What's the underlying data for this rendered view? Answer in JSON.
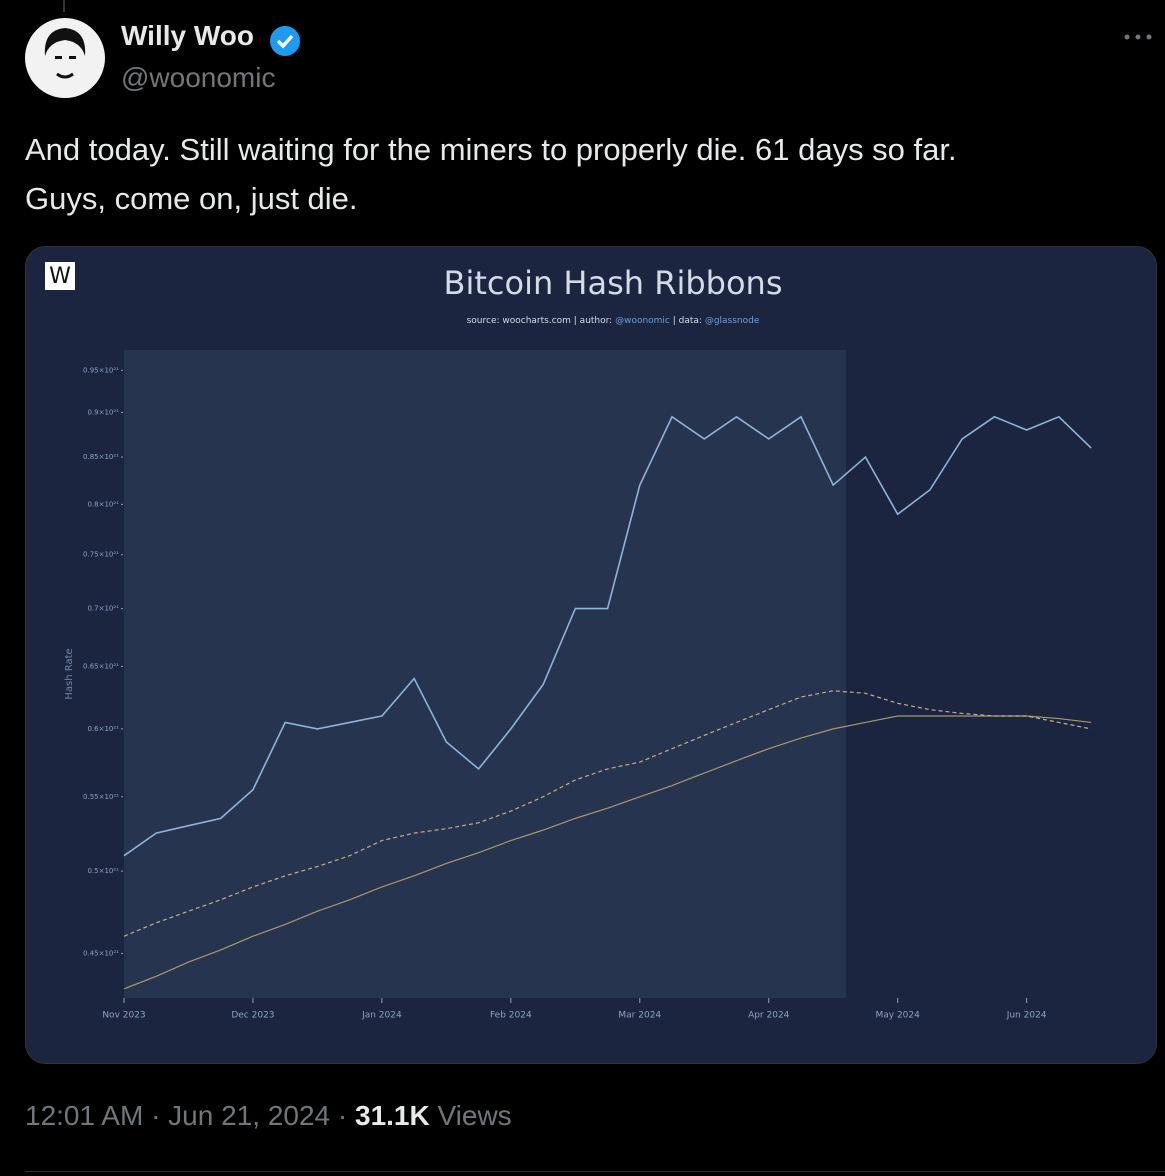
{
  "tweet": {
    "author": "Willy Woo",
    "handle": "@woonomic",
    "text_lines": [
      "And today. Still waiting for the miners to properly die. 61 days so far.",
      "Guys, come on, just die."
    ],
    "timestamp": "12:01 AM · Jun 21, 2024 ·",
    "views_count": "31.1K",
    "views_label": "Views"
  },
  "chart_data": {
    "type": "line",
    "title": "Bitcoin Hash Ribbons",
    "logo": "W",
    "source_parts": [
      "source: ",
      "woocharts.com",
      " | author: ",
      "@woonomic",
      " | data: ",
      "@glassnode"
    ],
    "ylabel": "Hash Rate",
    "log_y": true,
    "highlight_x": [
      0,
      5.6
    ],
    "x": [
      0,
      0.25,
      0.5,
      0.75,
      1,
      1.25,
      1.5,
      1.75,
      2,
      2.25,
      2.5,
      2.75,
      3,
      3.25,
      3.5,
      3.75,
      4,
      4.25,
      4.5,
      4.75,
      5,
      5.25,
      5.5,
      5.75,
      6,
      6.25,
      6.5,
      6.75,
      7,
      7.25,
      7.5
    ],
    "series": [
      {
        "color": "#8fb3d9",
        "values": [
          5.1e+20,
          5.25e+20,
          5.3e+20,
          5.35e+20,
          5.55e+20,
          6.05e+20,
          6e+20,
          6.05e+20,
          6.1e+20,
          6.4e+20,
          5.9e+20,
          5.7e+20,
          6e+20,
          6.35e+20,
          7e+20,
          7e+20,
          8.2e+20,
          8.95e+20,
          8.7e+20,
          8.95e+20,
          8.7e+20,
          8.95e+20,
          8.2e+20,
          8.5e+20,
          7.9e+20,
          8.15e+20,
          8.7e+20,
          8.95e+20,
          8.8e+20,
          8.95e+20,
          8.6e+20
        ]
      },
      {
        "color": "#c2b083",
        "dashed": true,
        "values": [
          4.6e+20,
          4.68e+20,
          4.75e+20,
          4.82e+20,
          4.9e+20,
          4.97e+20,
          5.03e+20,
          5.1e+20,
          5.2e+20,
          5.25e+20,
          5.28e+20,
          5.32e+20,
          5.4e+20,
          5.5e+20,
          5.62e+20,
          5.7e+20,
          5.75e+20,
          5.85e+20,
          5.95e+20,
          6.05e+20,
          6.15e+20,
          6.25e+20,
          6.3e+20,
          6.28e+20,
          6.2e+20,
          6.15e+20,
          6.12e+20,
          6.1e+20,
          6.1e+20,
          6.05e+20,
          6e+20
        ]
      },
      {
        "color": "#a8986a",
        "values": [
          4.3e+20,
          4.37e+20,
          4.45e+20,
          4.52e+20,
          4.6e+20,
          4.67e+20,
          4.75e+20,
          4.82e+20,
          4.9e+20,
          4.97e+20,
          5.05e+20,
          5.12e+20,
          5.2e+20,
          5.27e+20,
          5.35e+20,
          5.42e+20,
          5.5e+20,
          5.58e+20,
          5.67e+20,
          5.76e+20,
          5.85e+20,
          5.93e+20,
          6e+20,
          6.05e+20,
          6.1e+20,
          6.1e+20,
          6.1e+20,
          6.1e+20,
          6.1e+20,
          6.08e+20,
          6.05e+20
        ]
      }
    ],
    "xlim": [
      0,
      7.6
    ],
    "xticks": [
      {
        "value": 0,
        "label": "Nov 2023"
      },
      {
        "value": 1,
        "label": "Dec 2023"
      },
      {
        "value": 2,
        "label": "Jan 2024"
      },
      {
        "value": 3,
        "label": "Feb 2024"
      },
      {
        "value": 4,
        "label": "Mar 2024"
      },
      {
        "value": 5,
        "label": "Apr 2024"
      },
      {
        "value": 6,
        "label": "May 2024"
      },
      {
        "value": 7,
        "label": "Jun 2024"
      }
    ],
    "ylim": [
      4.25e+20,
      9.75e+20
    ],
    "yticks": [
      {
        "value": 4.5e+20,
        "label": "0.45×10²¹"
      },
      {
        "value": 5e+20,
        "label": "0.5×10²¹"
      },
      {
        "value": 5.5e+20,
        "label": "0.55×10²¹"
      },
      {
        "value": 6e+20,
        "label": "0.6×10²¹"
      },
      {
        "value": 6.5e+20,
        "label": "0.65×10²¹"
      },
      {
        "value": 7e+20,
        "label": "0.7×10²¹"
      },
      {
        "value": 7.5e+20,
        "label": "0.75×10²¹"
      },
      {
        "value": 8e+20,
        "label": "0.8×10²¹"
      },
      {
        "value": 8.5e+20,
        "label": "0.85×10²¹"
      },
      {
        "value": 9e+20,
        "label": "0.9×10²¹"
      },
      {
        "value": 9.5e+20,
        "label": "0.95×10²¹"
      }
    ]
  }
}
